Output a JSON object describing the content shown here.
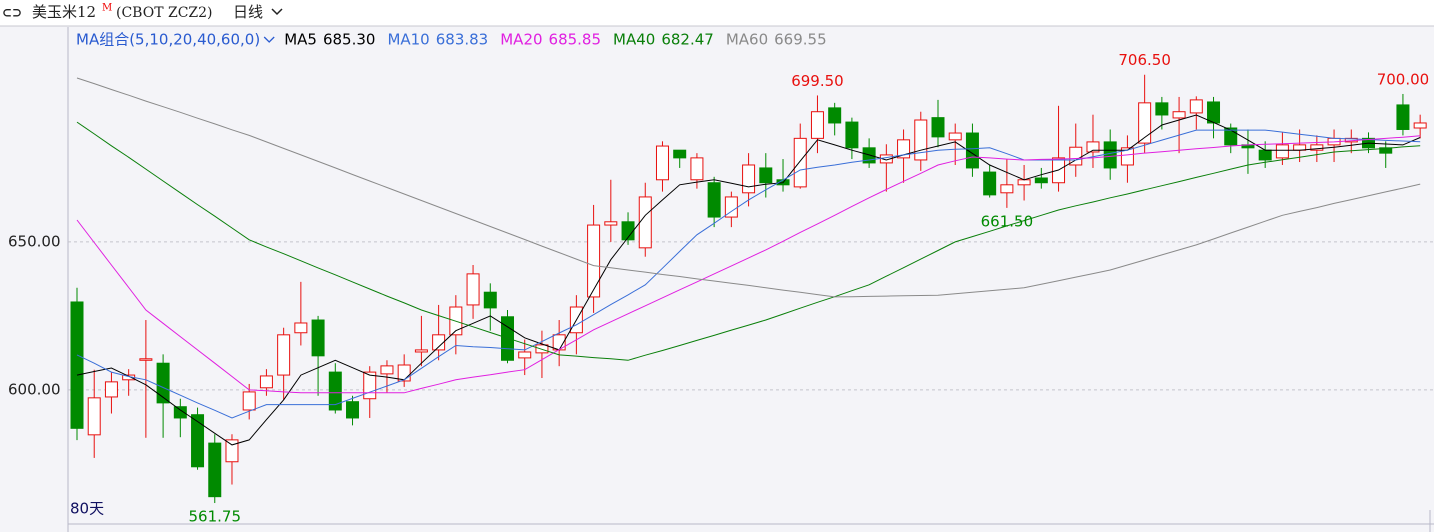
{
  "header": {
    "icon": "⊂⊃",
    "name": "美玉米12",
    "period_mark": "M",
    "code": "(CBOT ZCZ2)",
    "interval": "日线"
  },
  "chart_data": {
    "type": "candlestick",
    "days_label": "80天",
    "ma_group": "MA组合(5,10,20,40,60,0)",
    "ylim": [
      555,
      725
    ],
    "yticks": [
      {
        "value": 600,
        "label": "600.00"
      },
      {
        "value": 650,
        "label": "650.00"
      }
    ],
    "grid": true,
    "up_color": "#e8100e",
    "down_color": "#008a00",
    "ohlc": [
      [
        629.7,
        634.5,
        583,
        587
      ],
      [
        584.8,
        606.8,
        577,
        597.3
      ],
      [
        597.6,
        606,
        592,
        602.7
      ],
      [
        603.4,
        607,
        598,
        605
      ],
      [
        610,
        623.6,
        583.8,
        610.5
      ],
      [
        609,
        612,
        583.8,
        595.6
      ],
      [
        594.3,
        597,
        584,
        590.5
      ],
      [
        591.6,
        594,
        573,
        574
      ],
      [
        582,
        585,
        561.75,
        563.9
      ],
      [
        575.7,
        585,
        568,
        583.1
      ],
      [
        593.2,
        602,
        590,
        599.3
      ],
      [
        600.7,
        607,
        598,
        604.7
      ],
      [
        605,
        621,
        596.6,
        618.6
      ],
      [
        619.3,
        636.5,
        615,
        622.6
      ],
      [
        623.6,
        625,
        598,
        611.5
      ],
      [
        606,
        609,
        592,
        593.2
      ],
      [
        596,
        598,
        588,
        590.5
      ],
      [
        597,
        608,
        590.5,
        606
      ],
      [
        605.4,
        610,
        599,
        608.1
      ],
      [
        603,
        612,
        601,
        608.4
      ],
      [
        612.8,
        625,
        608,
        613.5
      ],
      [
        613.5,
        628.7,
        610,
        618.6
      ],
      [
        618.6,
        632,
        612,
        628
      ],
      [
        628.7,
        642.2,
        624,
        639.2
      ],
      [
        633,
        636,
        620,
        627.7
      ],
      [
        624.7,
        627,
        609,
        610
      ],
      [
        610.8,
        617,
        605,
        612.8
      ],
      [
        612.5,
        620,
        604,
        615.2
      ],
      [
        613.5,
        623.6,
        608,
        618.6
      ],
      [
        619.3,
        632,
        612,
        628
      ],
      [
        631.4,
        662.5,
        626,
        655.7
      ],
      [
        655.7,
        671,
        650,
        656.8
      ],
      [
        656.8,
        660,
        649,
        650.7
      ],
      [
        648,
        670,
        645,
        665.2
      ],
      [
        671,
        684,
        667,
        682.4
      ],
      [
        681,
        681,
        675,
        678.4
      ],
      [
        671,
        680,
        668,
        678.4
      ],
      [
        670,
        672,
        655,
        658.4
      ],
      [
        658.4,
        667,
        655,
        665.2
      ],
      [
        666.6,
        680,
        662,
        676
      ],
      [
        675,
        680,
        665,
        670
      ],
      [
        671,
        678,
        667,
        669.3
      ],
      [
        668.6,
        690,
        668,
        685
      ],
      [
        685,
        699.5,
        680,
        694
      ],
      [
        695.3,
        697,
        686,
        690.2
      ],
      [
        690.5,
        692,
        678,
        681.8
      ],
      [
        681.8,
        685,
        675,
        676.7
      ],
      [
        676.7,
        683,
        667,
        679.4
      ],
      [
        678.4,
        688,
        670,
        684.5
      ],
      [
        677.7,
        694,
        674,
        691.2
      ],
      [
        692,
        698,
        682,
        685.5
      ],
      [
        684.5,
        690,
        676,
        686.8
      ],
      [
        686.8,
        690,
        672,
        675
      ],
      [
        673.6,
        676,
        665,
        665.9
      ],
      [
        666.6,
        678,
        661.5,
        669.3
      ],
      [
        669.3,
        676,
        664,
        671
      ],
      [
        671.6,
        675,
        668,
        670
      ],
      [
        670,
        696,
        667,
        678.4
      ],
      [
        676,
        690,
        672,
        682
      ],
      [
        680.4,
        693,
        675,
        683.8
      ],
      [
        683.8,
        688,
        671,
        675
      ],
      [
        676,
        686,
        670,
        681.8
      ],
      [
        683.4,
        706.5,
        680,
        697
      ],
      [
        697,
        699,
        688,
        692.9
      ],
      [
        691.9,
        699,
        680,
        694
      ],
      [
        693.6,
        699.2,
        688,
        698
      ],
      [
        697.3,
        699,
        685,
        690.2
      ],
      [
        688.5,
        690,
        680,
        682.8
      ],
      [
        682.8,
        688,
        673,
        681.8
      ],
      [
        681,
        684,
        675,
        677.7
      ],
      [
        678.4,
        687,
        676,
        682.8
      ],
      [
        681,
        688,
        677,
        682.8
      ],
      [
        681,
        686,
        677,
        682.8
      ],
      [
        682.8,
        688,
        677,
        685
      ],
      [
        683.8,
        688,
        680,
        685
      ],
      [
        685,
        687,
        680,
        681.8
      ],
      [
        681.8,
        684,
        675,
        680
      ],
      [
        696.3,
        700,
        686,
        688
      ],
      [
        688.5,
        693,
        685,
        690.2
      ]
    ],
    "extremes": [
      {
        "value": 699.5,
        "label": "699.50"
      },
      {
        "value": 706.5,
        "label": "706.50"
      },
      {
        "value": 700,
        "label": "700.00"
      },
      {
        "value": 561.75,
        "label": "561.75"
      },
      {
        "value": 661.5,
        "label": "661.50"
      }
    ],
    "series": [
      {
        "name": "MA5",
        "last_label": "685.30",
        "color": "#000000",
        "values": [
          605.0,
          606.2,
          607.4,
          604.6,
          601.7,
          597.5,
          593.2,
          589.3,
          585.3,
          581.4,
          583.1,
          589.9,
          596.6,
          605.0,
          607.5,
          610.0,
          607.5,
          605.0,
          604.3,
          603.4,
          609.0,
          614.5,
          620.0,
          622.5,
          625.0,
          621.3,
          617.6,
          615.5,
          613.5,
          623.6,
          633.8,
          644.0,
          651.5,
          659.0,
          664.2,
          669.3,
          670.2,
          671.0,
          669.8,
          668.6,
          669.5,
          670.0,
          677.3,
          684.5,
          682.8,
          681.0,
          679.4,
          677.7,
          679.4,
          681.0,
          682.4,
          683.8,
          679.9,
          676.0,
          673.5,
          671.0,
          672.7,
          674.3,
          677.7,
          681.0,
          681.0,
          681.0,
          685.3,
          689.5,
          691.2,
          692.9,
          690.4,
          687.8,
          684.4,
          681.0,
          681.0,
          681.0,
          681.5,
          682.0,
          682.7,
          683.4,
          683.1,
          682.8,
          685.3
        ]
      },
      {
        "name": "MA10",
        "last_label": "683.83",
        "color": "#3a6fd8",
        "values": [
          611.8,
          609.0,
          606.0,
          604.5,
          603.4,
          600.8,
          598.2,
          595.6,
          593.1,
          590.5,
          592.8,
          595.0,
          595,
          595,
          595,
          595,
          597.1,
          599.2,
          601.3,
          603.4,
          607.3,
          611.2,
          615.0,
          614.6,
          614.3,
          613.9,
          613.5,
          616.3,
          619.2,
          622.0,
          625.4,
          628.8,
          632.1,
          635.5,
          641.1,
          646.8,
          652.4,
          656.3,
          660.3,
          664.2,
          667.6,
          670.9,
          674.3,
          675.2,
          676.0,
          676.9,
          677.7,
          678.5,
          679.4,
          680.2,
          681.0,
          681.3,
          681.5,
          681.8,
          679.8,
          677.7,
          677.7,
          677.7,
          677.7,
          678.8,
          679.9,
          681.0,
          682.7,
          684.4,
          686.1,
          687.8,
          687.8,
          687.8,
          687.8,
          687.8,
          687.1,
          686.4,
          685.7,
          685.0,
          684.8,
          684.6,
          684.3,
          684.1,
          683.83
        ]
      },
      {
        "name": "MA20",
        "last_label": "685.85",
        "color": "#e020e0",
        "values": [
          657.4,
          649.8,
          642.2,
          634.6,
          627.0,
          622.5,
          618.0,
          613.5,
          609.0,
          604.5,
          600.0,
          599.7,
          599.3,
          599.0,
          599,
          599,
          599,
          599,
          599,
          599,
          600.5,
          601.9,
          603.4,
          604.3,
          605.1,
          606.0,
          606.8,
          610.2,
          613.6,
          616.9,
          620.3,
          623.0,
          625.7,
          628.4,
          631.1,
          633.8,
          636.5,
          639.2,
          641.9,
          644.6,
          647.3,
          650.2,
          653.2,
          656.1,
          659.0,
          662.0,
          664.9,
          667.7,
          670.5,
          673.2,
          676.0,
          677.4,
          678.7,
          678.4,
          678.0,
          677.7,
          677.9,
          678.0,
          678.2,
          678.4,
          678.9,
          679.4,
          680.0,
          680.5,
          681.0,
          681.5,
          681.9,
          682.4,
          682.8,
          683.0,
          683.2,
          683.4,
          683.6,
          683.8,
          684.2,
          684.6,
          685.0,
          685.4,
          685.85
        ]
      },
      {
        "name": "MA40",
        "last_label": "682.47",
        "color": "#0a7f0a",
        "values": [
          690.5,
          686.5,
          682.5,
          678.6,
          674.6,
          670.6,
          666.6,
          662.6,
          658.7,
          654.7,
          650.7,
          648.3,
          646.0,
          643.6,
          641.2,
          638.9,
          636.5,
          634.1,
          631.7,
          629.4,
          627.0,
          625.1,
          623.2,
          621.3,
          619.4,
          617.5,
          615.6,
          613.7,
          611.8,
          611.4,
          610.9,
          610.5,
          610.0,
          611.7,
          613.3,
          615.0,
          616.7,
          618.4,
          620.2,
          621.9,
          623.6,
          625.6,
          627.6,
          629.6,
          631.5,
          633.5,
          635.5,
          638.4,
          641.3,
          644.2,
          647.1,
          650.0,
          651.8,
          653.6,
          655.4,
          657.2,
          659.0,
          660.8,
          662.2,
          663.5,
          664.9,
          666.2,
          667.6,
          669.0,
          670.4,
          671.8,
          673.2,
          674.6,
          676.0,
          676.9,
          677.8,
          678.6,
          679.5,
          680.4,
          680.8,
          681.2,
          681.6,
          682.1,
          682.47
        ]
      },
      {
        "name": "MA60",
        "last_label": "669.55",
        "color": "#8a8a8a",
        "values": [
          705.4,
          703.5,
          701.5,
          699.6,
          697.6,
          695.7,
          693.8,
          691.8,
          689.9,
          687.9,
          686.0,
          683.8,
          681.6,
          679.4,
          677.2,
          675.0,
          672.8,
          670.6,
          668.4,
          666.2,
          664.0,
          661.8,
          659.6,
          657.4,
          655.2,
          653.0,
          650.8,
          648.6,
          646.4,
          644.2,
          642.0,
          641.3,
          640.5,
          639.8,
          639.0,
          638.3,
          637.5,
          636.8,
          636.0,
          635.3,
          634.5,
          633.7,
          633.0,
          632.2,
          631.4,
          631.5,
          631.6,
          631.7,
          631.8,
          631.9,
          632.0,
          632.5,
          633.0,
          633.5,
          634.0,
          634.5,
          635.7,
          636.9,
          638.1,
          639.3,
          640.5,
          642.2,
          643.9,
          645.6,
          647.3,
          649.0,
          651.0,
          653.0,
          655.0,
          657.0,
          659.0,
          660.3,
          661.6,
          663.0,
          664.3,
          665.6,
          666.9,
          668.2,
          669.55
        ]
      }
    ]
  }
}
